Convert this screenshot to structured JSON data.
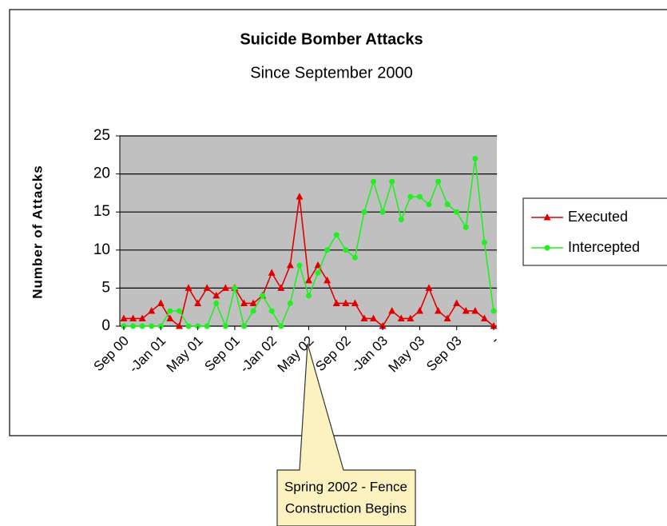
{
  "chart_data": {
    "type": "line",
    "title": "Suicide Bomber Attacks",
    "subtitle": "Since September 2000",
    "y_label": "Number of Attacks",
    "categories": [
      "Sep 00",
      null,
      null,
      null,
      "-Jan 01",
      null,
      null,
      null,
      "May 01",
      null,
      null,
      null,
      "Sep 01",
      null,
      null,
      null,
      "-Jan 02",
      null,
      null,
      null,
      "May 02",
      null,
      null,
      null,
      "Sep 02",
      null,
      null,
      null,
      "-Jan 03",
      null,
      null,
      null,
      "May 03",
      null,
      null,
      null,
      "Sep 03",
      null,
      null,
      null,
      "-"
    ],
    "series": [
      {
        "name": "Executed",
        "color": "#e00000",
        "marker": "triangle",
        "values": [
          1,
          1,
          1,
          2,
          3,
          1,
          0,
          5,
          3,
          5,
          4,
          5,
          5,
          3,
          3,
          4,
          7,
          5,
          8,
          17,
          6,
          8,
          6,
          3,
          3,
          3,
          1,
          1,
          0,
          2,
          1,
          1,
          2,
          5,
          2,
          1,
          3,
          2,
          2,
          1,
          0
        ]
      },
      {
        "name": "Intercepted",
        "color": "#22ee22",
        "marker": "circle",
        "values": [
          0,
          0,
          0,
          0,
          0,
          2,
          2,
          0,
          0,
          0,
          3,
          0,
          5,
          0,
          2,
          4,
          2,
          0,
          3,
          8,
          4,
          7,
          10,
          12,
          10,
          9,
          15,
          19,
          15,
          19,
          14,
          17,
          17,
          16,
          19,
          16,
          15,
          13,
          22,
          11,
          2
        ]
      }
    ],
    "ylim": [
      0,
      25
    ],
    "yticks": [
      0,
      5,
      10,
      15,
      20,
      25
    ],
    "grid": true,
    "legend": "right",
    "annotation": [
      "Spring 2002 - Fence",
      "Construction Begins"
    ]
  }
}
